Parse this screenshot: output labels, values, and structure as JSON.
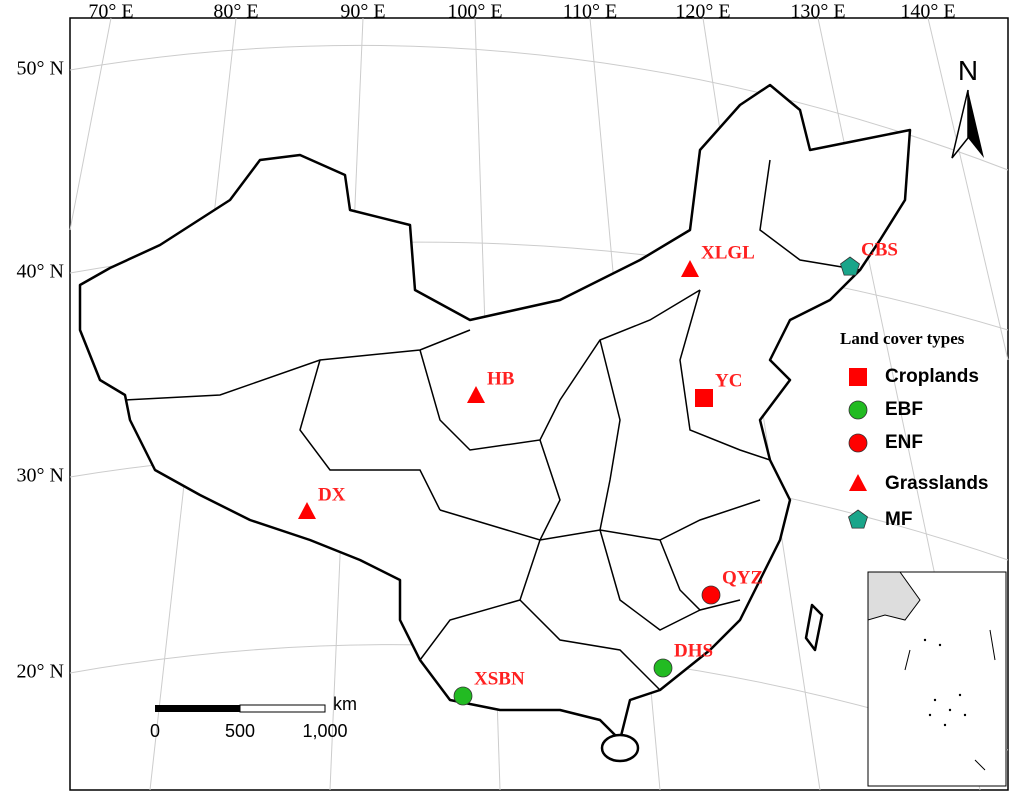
{
  "map": {
    "lon_labels": [
      "70° E",
      "80° E",
      "90° E",
      "100° E",
      "110° E",
      "120° E",
      "130° E",
      "140° E"
    ],
    "lat_labels": [
      "50° N",
      "40° N",
      "30° N",
      "20° N"
    ],
    "north": "N",
    "sites": [
      {
        "label": "XLGL",
        "type": "Grasslands"
      },
      {
        "label": "CBS",
        "type": "MF"
      },
      {
        "label": "HB",
        "type": "Grasslands"
      },
      {
        "label": "YC",
        "type": "Croplands"
      },
      {
        "label": "DX",
        "type": "Grasslands"
      },
      {
        "label": "QYZ",
        "type": "ENF"
      },
      {
        "label": "DHS",
        "type": "EBF"
      },
      {
        "label": "XSBN",
        "type": "EBF"
      }
    ],
    "legend": {
      "title": "Land cover types",
      "items": [
        {
          "label": "Croplands",
          "shape": "square",
          "color": "#ff0000"
        },
        {
          "label": "EBF",
          "shape": "circle",
          "color": "#22bb22"
        },
        {
          "label": "ENF",
          "shape": "circle",
          "color": "#ff0000"
        },
        {
          "label": "Grasslands",
          "shape": "triangle",
          "color": "#ff0000"
        },
        {
          "label": "MF",
          "shape": "pentagon",
          "color": "#1aa58a"
        }
      ]
    },
    "scale_bar": {
      "unit": "km",
      "labels": [
        "0",
        "500",
        "1,000"
      ]
    }
  }
}
